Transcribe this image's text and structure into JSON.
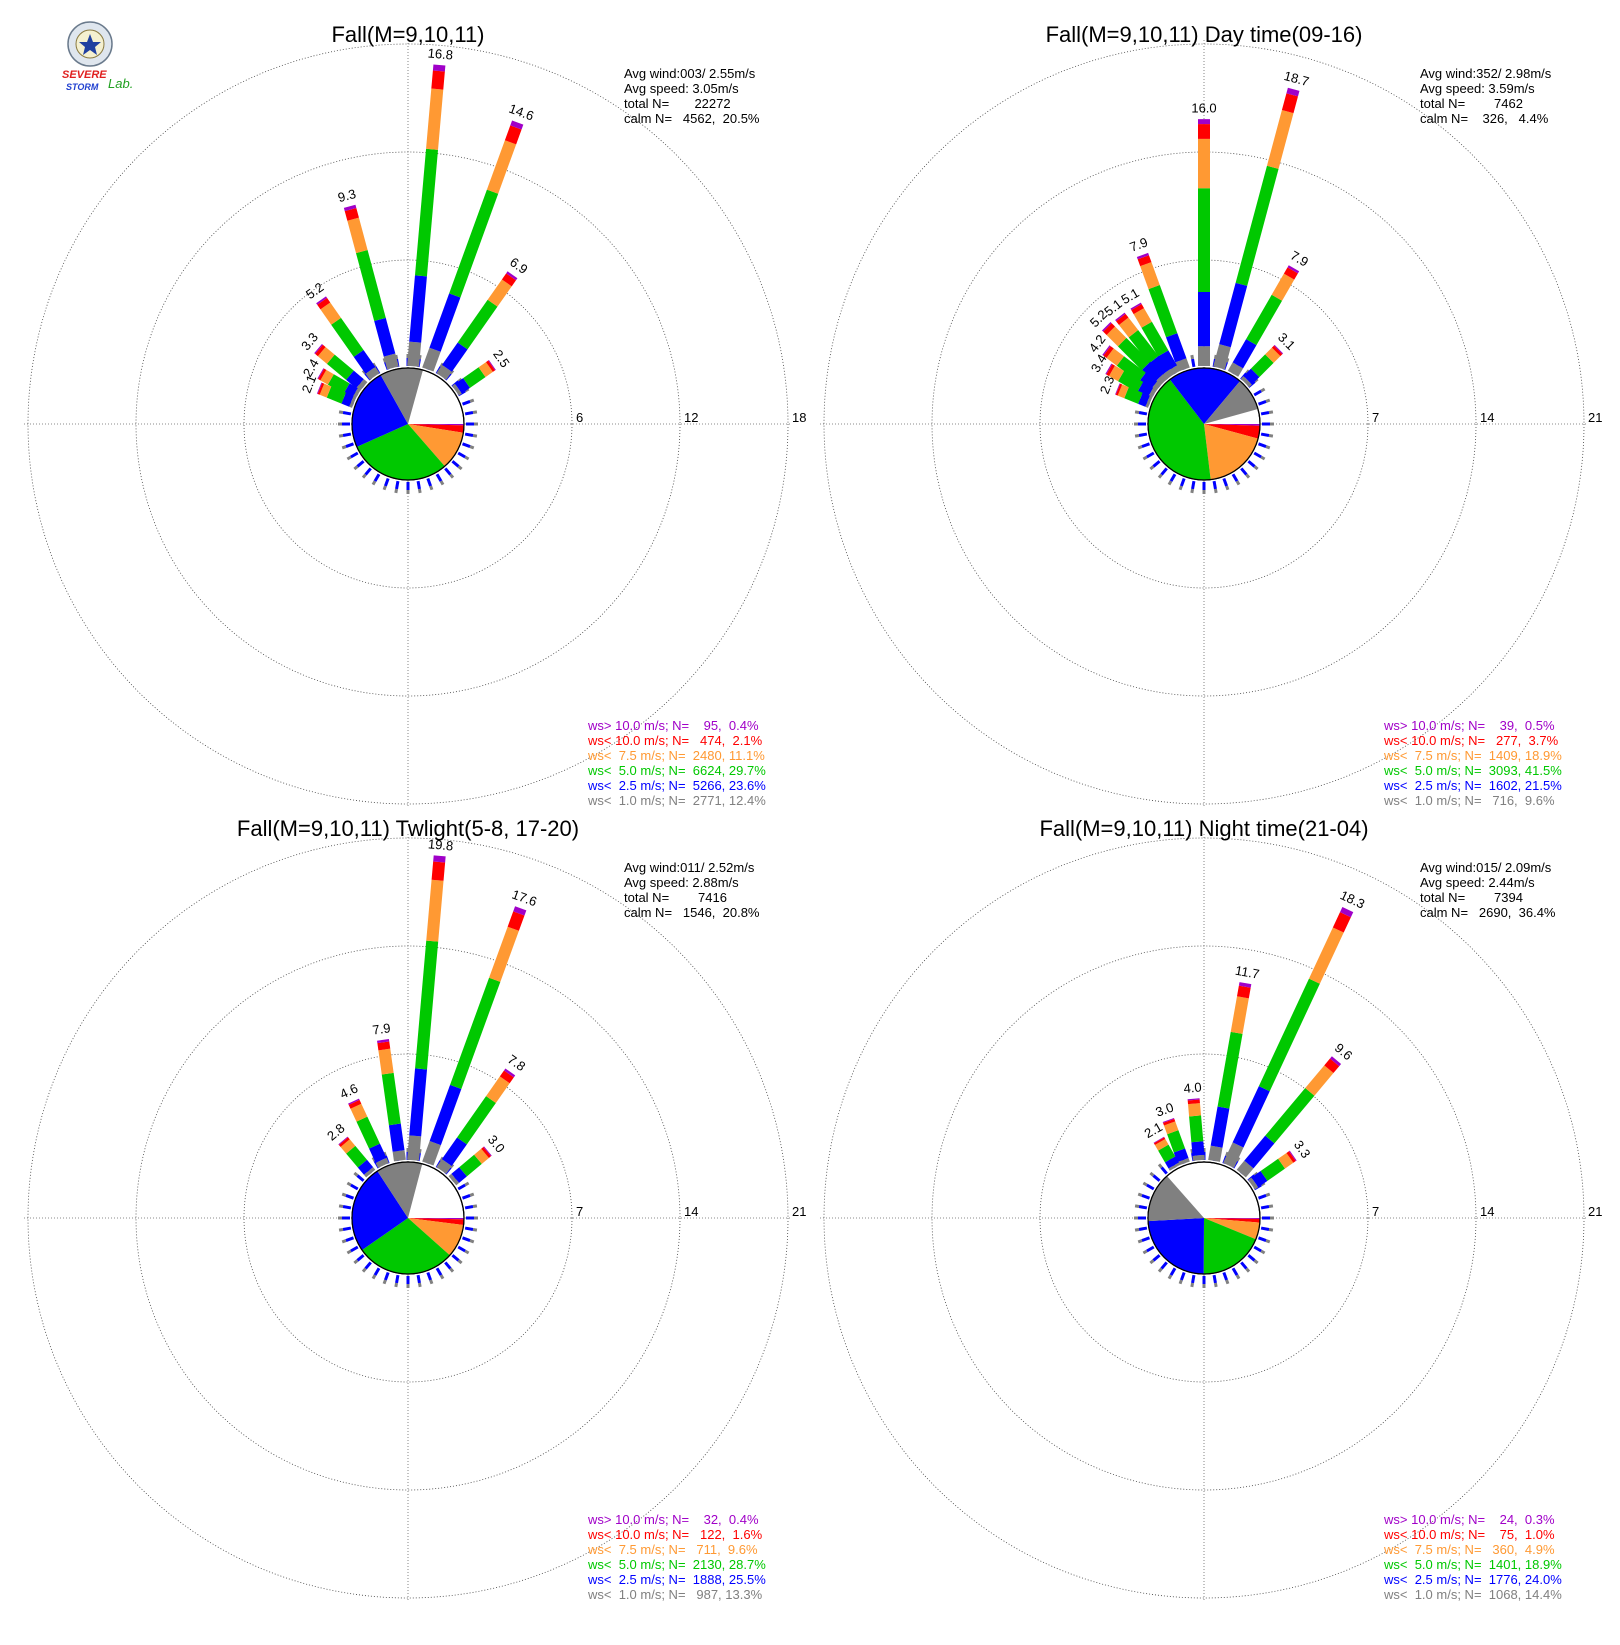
{
  "logo": {
    "top_text": "SEVERE",
    "bottom_text": "STORM",
    "suffix": "Lab."
  },
  "legend_colors": {
    "gt10": "#a000c8",
    "lt10": "#ff0000",
    "lt7_5": "#ff9933",
    "lt5": "#00c800",
    "lt2_5": "#0000ff",
    "lt1": "#808080"
  },
  "chart_data": [
    {
      "type": "wind-rose",
      "title": "Fall(M=9,10,11)",
      "stats": [
        "Avg wind:003/ 2.55m/s",
        "Avg speed: 3.05m/s",
        "total N=       22272",
        "calm N=   4562,  20.5%"
      ],
      "rings": [
        6,
        12,
        18
      ],
      "rmax": 18,
      "calm_pct": 20.5,
      "bars": [
        {
          "dir": 345,
          "value": 9.3
        },
        {
          "dir": 5,
          "value": 16.8
        },
        {
          "dir": 20,
          "value": 14.6
        },
        {
          "dir": 35,
          "value": 6.9
        },
        {
          "dir": 325,
          "value": 5.2
        },
        {
          "dir": 310,
          "value": 3.3
        },
        {
          "dir": 300,
          "value": 2.4
        },
        {
          "dir": 292,
          "value": 2.1
        },
        {
          "dir": 55,
          "value": 2.5
        }
      ],
      "pie": [
        {
          "label": "ws< 1.0",
          "pct": 12.4
        },
        {
          "label": "ws< 2.5",
          "pct": 23.6
        },
        {
          "label": "ws< 5.0",
          "pct": 29.7
        },
        {
          "label": "ws< 7.5",
          "pct": 11.1
        },
        {
          "label": "ws< 10.0",
          "pct": 2.1
        },
        {
          "label": "ws> 10.0",
          "pct": 0.4
        }
      ],
      "legend": [
        "ws> 10.0 m/s; N=    95,  0.4%",
        "ws< 10.0 m/s; N=   474,  2.1%",
        "ws<  7.5 m/s; N=  2480, 11.1%",
        "ws<  5.0 m/s; N=  6624, 29.7%",
        "ws<  2.5 m/s; N=  5266, 23.6%",
        "ws<  1.0 m/s; N=  2771, 12.4%"
      ]
    },
    {
      "type": "wind-rose",
      "title": "Fall(M=9,10,11) Day time(09-16)",
      "stats": [
        "Avg wind:352/ 2.98m/s",
        "Avg speed: 3.59m/s",
        "total N=        7462",
        "calm N=    326,   4.4%"
      ],
      "rings": [
        7,
        14,
        21
      ],
      "rmax": 21,
      "calm_pct": 4.4,
      "bars": [
        {
          "dir": 0,
          "value": 16.0
        },
        {
          "dir": 15,
          "value": 18.7
        },
        {
          "dir": 30,
          "value": 7.9
        },
        {
          "dir": 340,
          "value": 7.9
        },
        {
          "dir": 330,
          "value": 5.1
        },
        {
          "dir": 322,
          "value": 5.1
        },
        {
          "dir": 315,
          "value": 5.2
        },
        {
          "dir": 307,
          "value": 4.2
        },
        {
          "dir": 300,
          "value": 3.4
        },
        {
          "dir": 292,
          "value": 2.3
        },
        {
          "dir": 45,
          "value": 3.1
        }
      ],
      "pie": [
        {
          "label": "ws< 1.0",
          "pct": 9.6
        },
        {
          "label": "ws< 2.5",
          "pct": 21.5
        },
        {
          "label": "ws< 5.0",
          "pct": 41.5
        },
        {
          "label": "ws< 7.5",
          "pct": 18.9
        },
        {
          "label": "ws< 10.0",
          "pct": 3.7
        },
        {
          "label": "ws> 10.0",
          "pct": 0.5
        }
      ],
      "legend": [
        "ws> 10.0 m/s; N=    39,  0.5%",
        "ws< 10.0 m/s; N=   277,  3.7%",
        "ws<  7.5 m/s; N=  1409, 18.9%",
        "ws<  5.0 m/s; N=  3093, 41.5%",
        "ws<  2.5 m/s; N=  1602, 21.5%",
        "ws<  1.0 m/s; N=   716,  9.6%"
      ]
    },
    {
      "type": "wind-rose",
      "title": "Fall(M=9,10,11) Twlight(5-8, 17-20)",
      "stats": [
        "Avg wind:011/ 2.52m/s",
        "Avg speed: 2.88m/s",
        "total N=        7416",
        "calm N=   1546,  20.8%"
      ],
      "rings": [
        7,
        14,
        21
      ],
      "rmax": 21,
      "calm_pct": 20.8,
      "bars": [
        {
          "dir": 352,
          "value": 7.9
        },
        {
          "dir": 5,
          "value": 19.8
        },
        {
          "dir": 20,
          "value": 17.6
        },
        {
          "dir": 35,
          "value": 7.8
        },
        {
          "dir": 335,
          "value": 4.6
        },
        {
          "dir": 320,
          "value": 2.8
        },
        {
          "dir": 50,
          "value": 3.0
        }
      ],
      "pie": [
        {
          "label": "ws< 1.0",
          "pct": 13.3
        },
        {
          "label": "ws< 2.5",
          "pct": 25.5
        },
        {
          "label": "ws< 5.0",
          "pct": 28.7
        },
        {
          "label": "ws< 7.5",
          "pct": 9.6
        },
        {
          "label": "ws< 10.0",
          "pct": 1.6
        },
        {
          "label": "ws> 10.0",
          "pct": 0.4
        }
      ],
      "legend": [
        "ws> 10.0 m/s; N=    32,  0.4%",
        "ws< 10.0 m/s; N=   122,  1.6%",
        "ws<  7.5 m/s; N=   711,  9.6%",
        "ws<  5.0 m/s; N=  2130, 28.7%",
        "ws<  2.5 m/s; N=  1888, 25.5%",
        "ws<  1.0 m/s; N=   987, 13.3%"
      ]
    },
    {
      "type": "wind-rose",
      "title": "Fall(M=9,10,11) Night time(21-04)",
      "stats": [
        "Avg wind:015/ 2.09m/s",
        "Avg speed: 2.44m/s",
        "total N=        7394",
        "calm N=   2690,  36.4%"
      ],
      "rings": [
        7,
        14,
        21
      ],
      "rmax": 21,
      "calm_pct": 36.4,
      "bars": [
        {
          "dir": 10,
          "value": 11.7
        },
        {
          "dir": 25,
          "value": 18.3
        },
        {
          "dir": 40,
          "value": 9.6
        },
        {
          "dir": 355,
          "value": 4.0
        },
        {
          "dir": 340,
          "value": 3.0
        },
        {
          "dir": 330,
          "value": 2.1
        },
        {
          "dir": 55,
          "value": 3.3
        }
      ],
      "pie": [
        {
          "label": "ws< 1.0",
          "pct": 14.4
        },
        {
          "label": "ws< 2.5",
          "pct": 24.0
        },
        {
          "label": "ws< 5.0",
          "pct": 18.9
        },
        {
          "label": "ws< 7.5",
          "pct": 4.9
        },
        {
          "label": "ws< 10.0",
          "pct": 1.0
        },
        {
          "label": "ws> 10.0",
          "pct": 0.3
        }
      ],
      "legend": [
        "ws> 10.0 m/s; N=    24,  0.3%",
        "ws< 10.0 m/s; N=    75,  1.0%",
        "ws<  7.5 m/s; N=   360,  4.9%",
        "ws<  5.0 m/s; N=  1401, 18.9%",
        "ws<  2.5 m/s; N=  1776, 24.0%",
        "ws<  1.0 m/s; N=  1068, 14.4%"
      ]
    }
  ]
}
